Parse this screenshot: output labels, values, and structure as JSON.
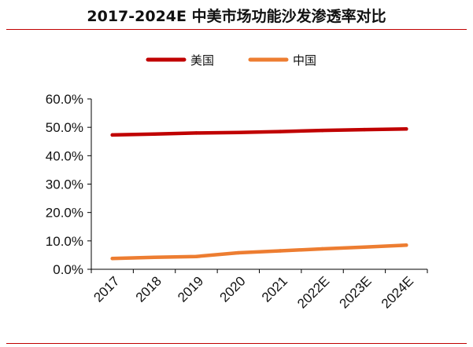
{
  "title": "2017-2024E 中美市场功能沙发渗透率对比",
  "colors": {
    "us": "#c00000",
    "cn": "#ed7d31",
    "rule": "#c00000"
  },
  "chart_data": {
    "type": "line",
    "title": "2017-2024E 中美市场功能沙发渗透率对比",
    "categories": [
      "2017",
      "2018",
      "2019",
      "2020",
      "2021",
      "2022E",
      "2023E",
      "2024E"
    ],
    "series": [
      {
        "name": "美国",
        "values": [
          47.3,
          47.6,
          48.0,
          48.2,
          48.5,
          48.9,
          49.2,
          49.4
        ]
      },
      {
        "name": "中国",
        "values": [
          3.8,
          4.2,
          4.5,
          5.8,
          6.5,
          7.2,
          7.8,
          8.5
        ]
      }
    ],
    "y_ticks": [
      "0.0%",
      "10.0%",
      "20.0%",
      "30.0%",
      "40.0%",
      "50.0%",
      "60.0%"
    ],
    "ylim": [
      0,
      60
    ],
    "grid": false,
    "legend": "top-center"
  }
}
